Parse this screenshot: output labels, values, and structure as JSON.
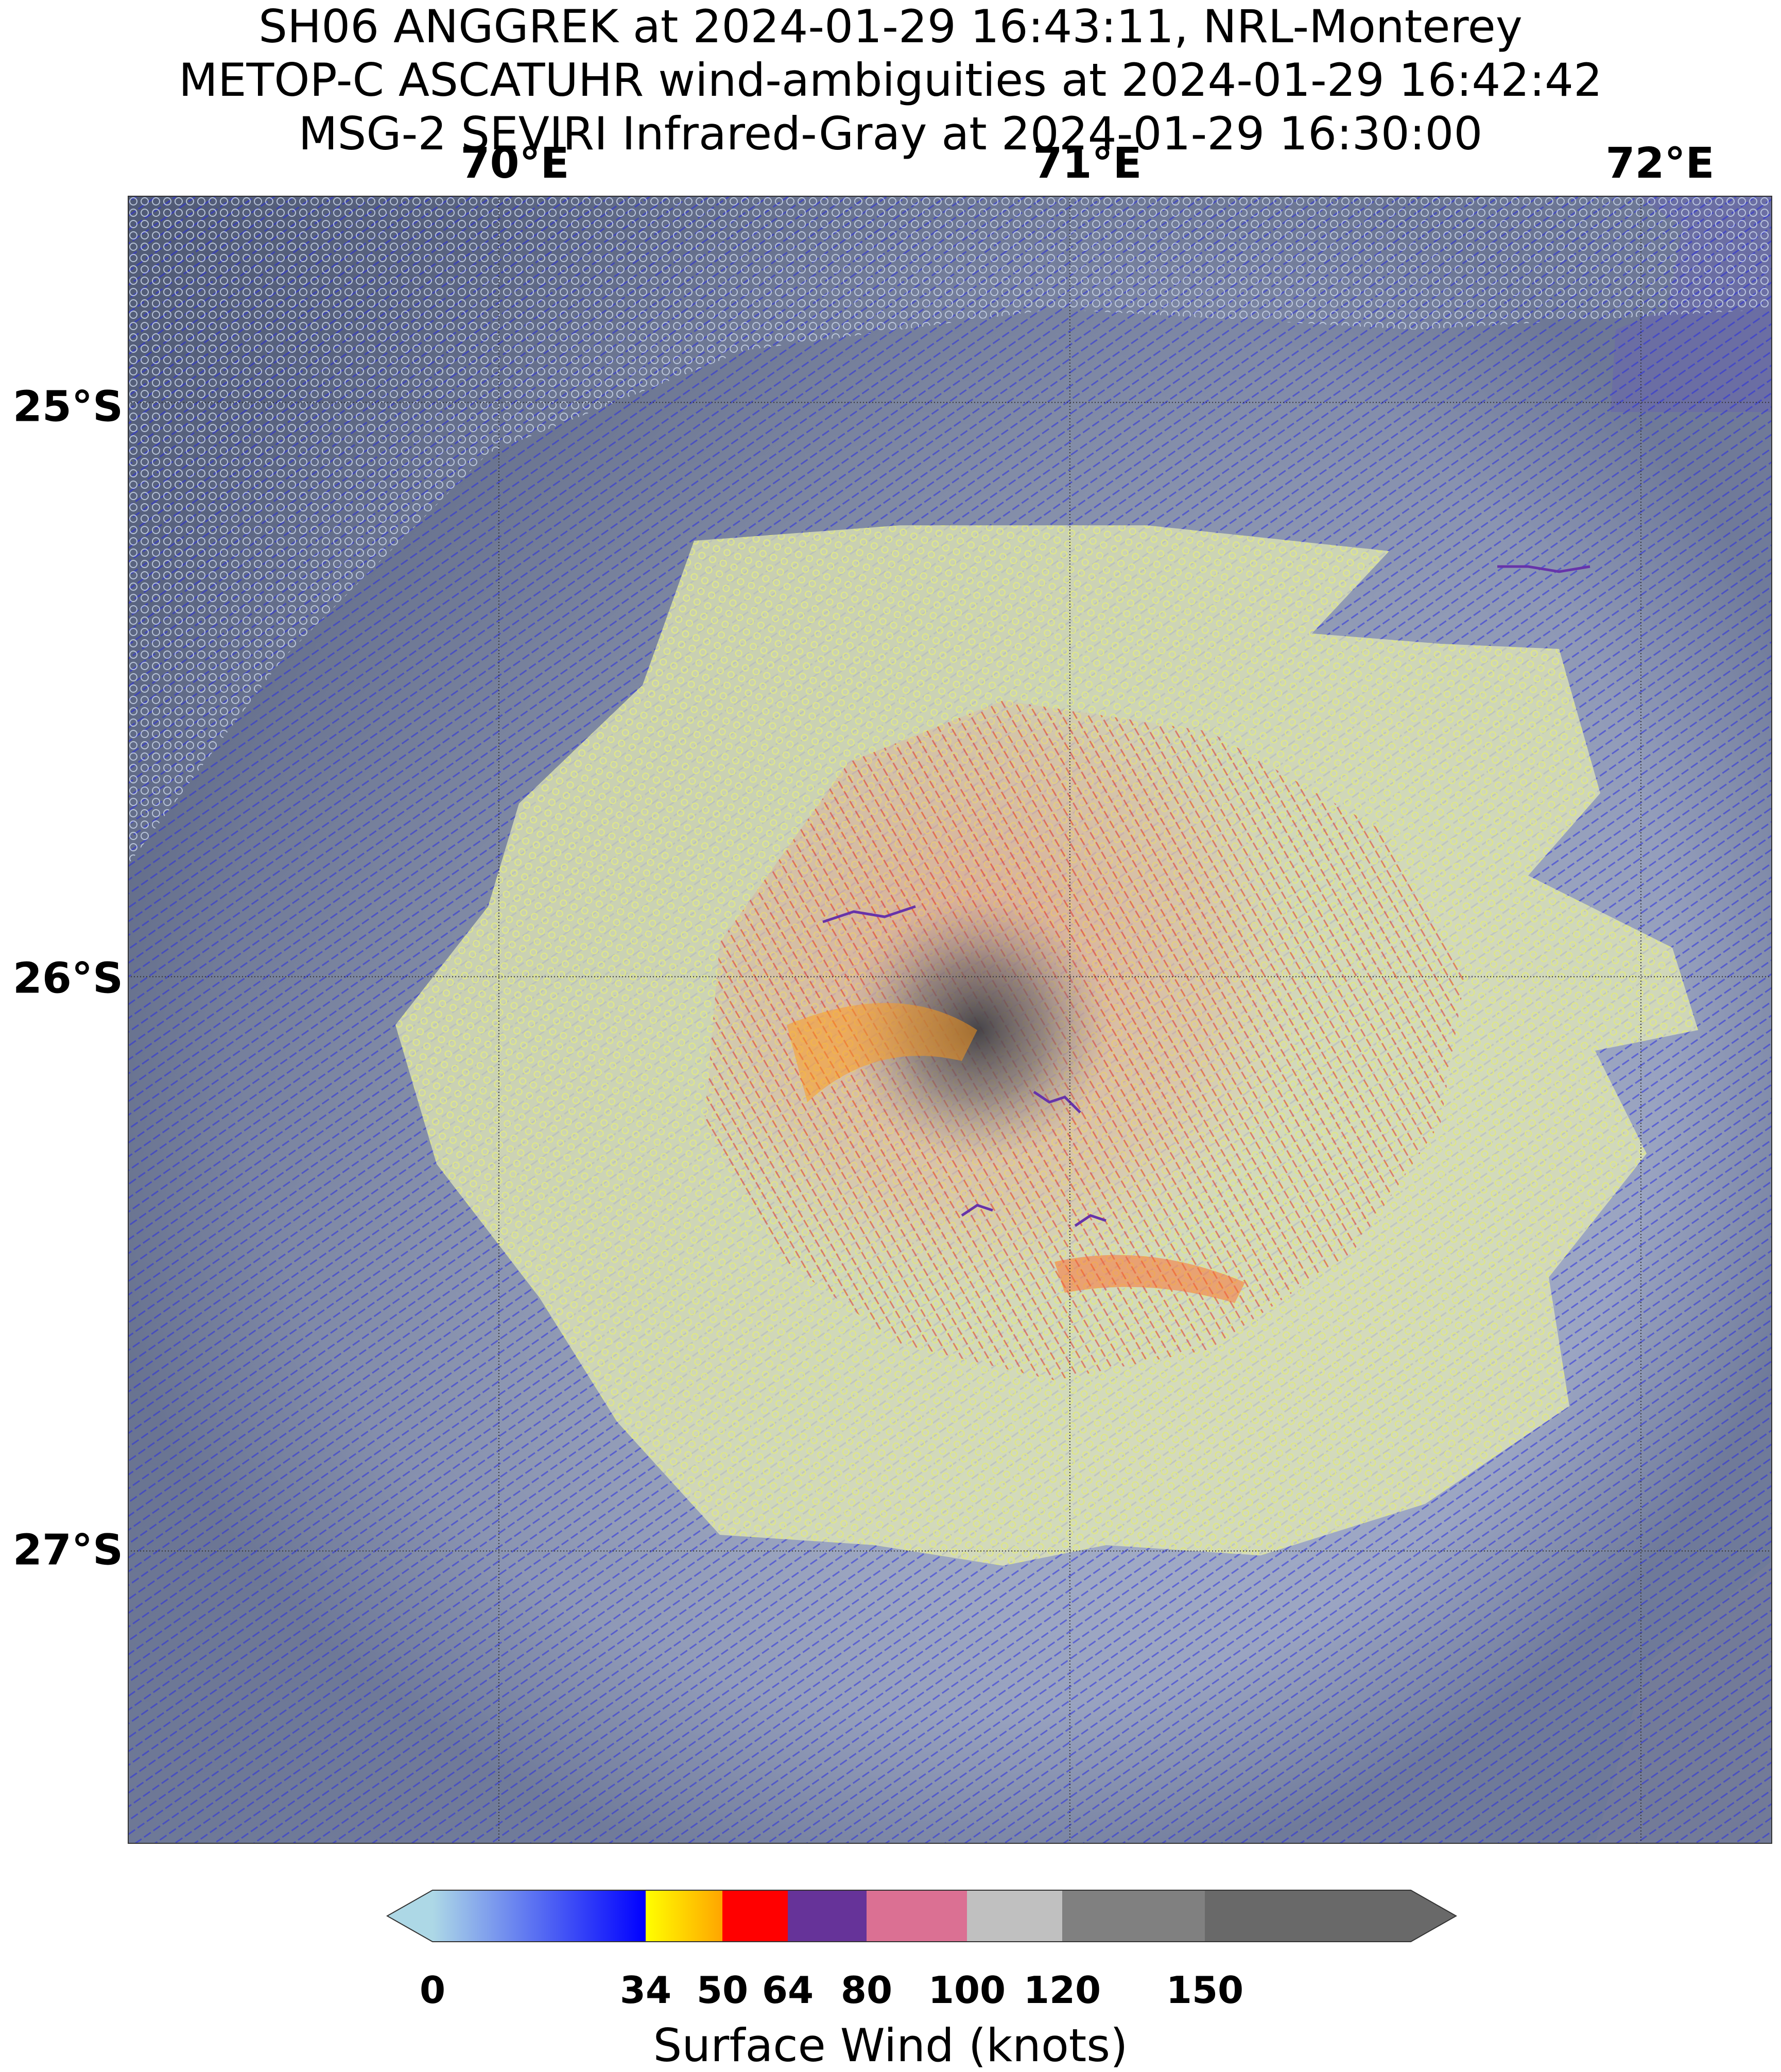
{
  "title": {
    "line1": "SH06 ANGGREK at 2024-01-29 16:43:11, NRL-Monterey",
    "line2": "METOP-C ASCATUHR wind-ambiguities at 2024-01-29 16:42:42",
    "line3": "MSG-2 SEVIRI Infrared-Gray at 2024-01-29 16:30:00"
  },
  "map": {
    "lon_labels": [
      "70°E",
      "71°E",
      "72°E"
    ],
    "lat_labels": [
      "25°S",
      "26°S",
      "27°S"
    ],
    "lon_values": [
      70,
      71,
      72
    ],
    "lat_values": [
      -25,
      -26,
      -27
    ],
    "lon_range": [
      69.35,
      72.23
    ],
    "lat_range": [
      -27.51,
      -24.64
    ],
    "storm_center": {
      "lon": 70.75,
      "lat": -26.1
    }
  },
  "colorbar": {
    "label": "Surface Wind (knots)",
    "ticks": [
      "0",
      "34",
      "50",
      "64",
      "80",
      "100",
      "120",
      "150"
    ],
    "tick_values": [
      0,
      34,
      50,
      64,
      80,
      100,
      120,
      150
    ],
    "segments": [
      {
        "from": 0,
        "to": 34,
        "colors": [
          "#add8e6",
          "#0000ff"
        ]
      },
      {
        "from": 34,
        "to": 50,
        "colors": [
          "#ffff00",
          "#ffa500"
        ]
      },
      {
        "from": 50,
        "to": 64,
        "colors": [
          "#ff0000"
        ]
      },
      {
        "from": 64,
        "to": 80,
        "colors": [
          "#663399"
        ]
      },
      {
        "from": 80,
        "to": 100,
        "colors": [
          "#db7093"
        ]
      },
      {
        "from": 100,
        "to": 120,
        "colors": [
          "#c0c0c0"
        ]
      },
      {
        "from": 120,
        "to": 150,
        "colors": [
          "#808080"
        ]
      },
      {
        "from": 150,
        "to": 180,
        "colors": [
          "#696969"
        ]
      }
    ]
  }
}
